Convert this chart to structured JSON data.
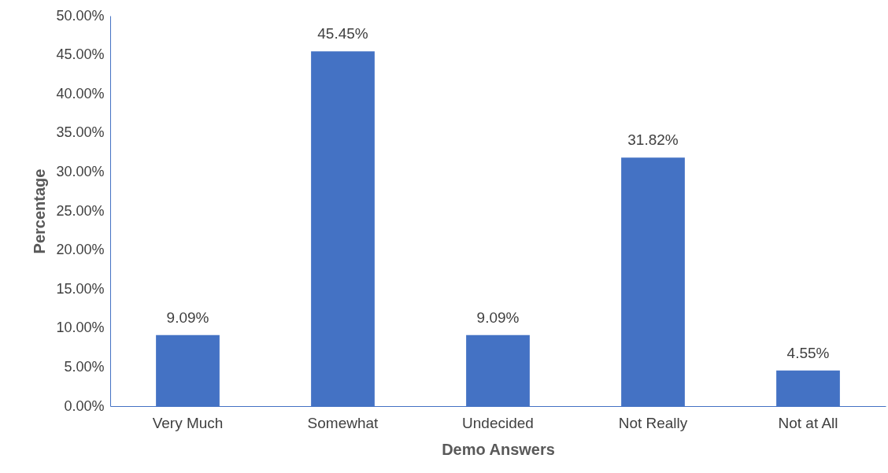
{
  "chart_data": {
    "type": "bar",
    "xlabel": "Demo Answers",
    "ylabel": "Percentage",
    "categories": [
      "Very Much",
      "Somewhat",
      "Undecided",
      "Not Really",
      "Not at All"
    ],
    "values": [
      9.09,
      45.45,
      9.09,
      31.82,
      4.55
    ],
    "value_labels": [
      "9.09%",
      "45.45%",
      "9.09%",
      "31.82%",
      "4.55%"
    ],
    "color": "#4472c4",
    "ylim": [
      0,
      50
    ],
    "yticks": [
      {
        "value": 0,
        "label": "0.00%"
      },
      {
        "value": 5,
        "label": "5.00%"
      },
      {
        "value": 10,
        "label": "10.00%"
      },
      {
        "value": 15,
        "label": "15.00%"
      },
      {
        "value": 20,
        "label": "20.00%"
      },
      {
        "value": 25,
        "label": "25.00%"
      },
      {
        "value": 30,
        "label": "30.00%"
      },
      {
        "value": 35,
        "label": "35.00%"
      },
      {
        "value": 40,
        "label": "40.00%"
      },
      {
        "value": 45,
        "label": "45.00%"
      },
      {
        "value": 50,
        "label": "50.00%"
      }
    ],
    "grid": false
  }
}
